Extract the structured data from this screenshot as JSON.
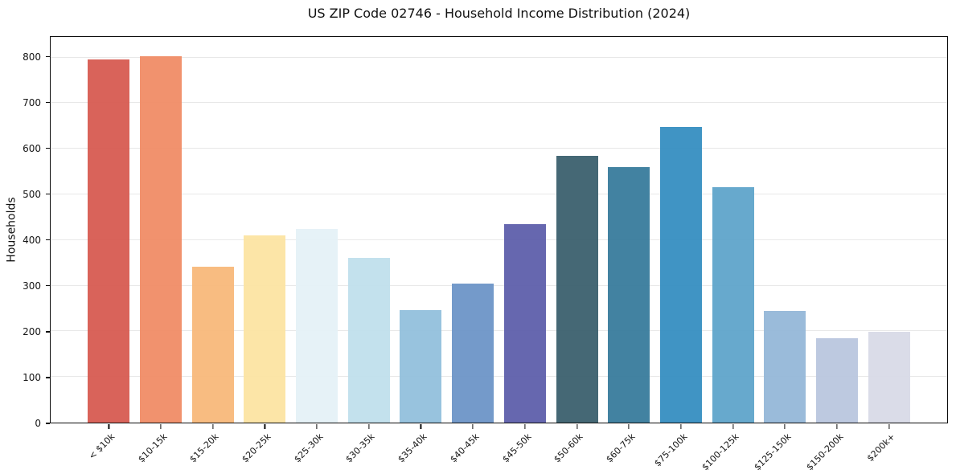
{
  "chart_data": {
    "type": "bar",
    "title": "US ZIP Code 02746 - Household Income Distribution (2024)",
    "xlabel": "",
    "ylabel": "Households",
    "categories": [
      "< $10k",
      "$10-15k",
      "$15-20k",
      "$20-25k",
      "$25-30k",
      "$30-35k",
      "$35-40k",
      "$40-45k",
      "$45-50k",
      "$50-60k",
      "$60-75k",
      "$75-100k",
      "$100-125k",
      "$125-150k",
      "$150-200k",
      "$200k+"
    ],
    "values": [
      795,
      803,
      342,
      410,
      424,
      361,
      247,
      305,
      434,
      585,
      560,
      648,
      515,
      245,
      184,
      199
    ],
    "bar_colors": [
      "#d6574e",
      "#f08a63",
      "#f8b777",
      "#fce3a0",
      "#e4f1f6",
      "#bedfec",
      "#90bedb",
      "#6992c6",
      "#5a5ba9",
      "#375c6b",
      "#34799a",
      "#318cc0",
      "#5ba3c9",
      "#92b6d7",
      "#b8c5de",
      "#d7d9e6"
    ],
    "yticks": [
      0,
      100,
      200,
      300,
      400,
      500,
      600,
      700,
      800
    ],
    "ylim": [
      0,
      845
    ],
    "grid": "horizontal",
    "gridline_color": "#e8e8e8",
    "background": "#ffffff",
    "legend": "none"
  }
}
